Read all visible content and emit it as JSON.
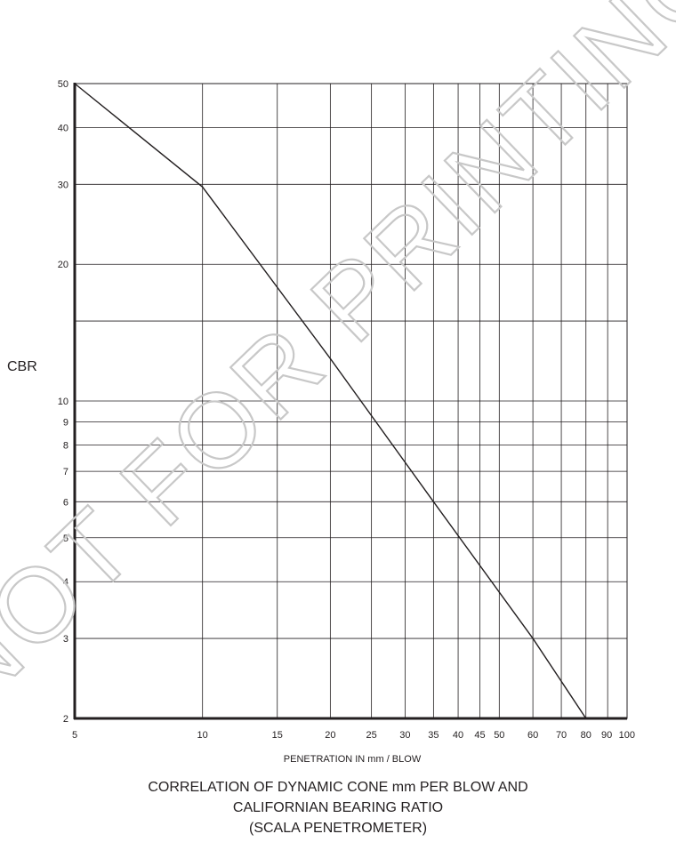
{
  "chart_data": {
    "type": "line",
    "ylabel": "CBR",
    "xlabel": "PENETRATION IN mm / BLOW",
    "title_lines": [
      "CORRELATION OF DYNAMIC CONE  mm  PER BLOW AND",
      "CALIFORNIAN BEARING RATIO",
      "(SCALA PENETROMETER)"
    ],
    "x_scale": "log",
    "y_scale": "log",
    "xlim": [
      5,
      100
    ],
    "ylim": [
      2,
      50
    ],
    "grid": true,
    "x_ticks": [
      5,
      10,
      15,
      20,
      25,
      30,
      35,
      40,
      45,
      50,
      60,
      70,
      80,
      90,
      100
    ],
    "x_tick_labels": [
      "5",
      "10",
      "15",
      "20",
      "25",
      "30",
      "35",
      "40",
      "45",
      "50",
      "60",
      "70",
      "80",
      "90",
      "100"
    ],
    "y_ticks": [
      2,
      3,
      4,
      5,
      6,
      7,
      8,
      9,
      10,
      20,
      30,
      40,
      50
    ],
    "y_tick_labels": [
      "2",
      "3",
      "4",
      "5",
      "6",
      "7",
      "8",
      "9",
      "10",
      "20",
      "30",
      "40",
      "50"
    ],
    "y_extra_gridlines": [
      15
    ],
    "series": [
      {
        "points": [
          [
            5,
            50
          ],
          [
            10,
            29.6
          ],
          [
            20,
            12.4
          ],
          [
            35,
            6
          ],
          [
            60,
            3
          ],
          [
            80,
            2
          ]
        ]
      }
    ]
  },
  "watermark": "NOT FOR PRINTING"
}
